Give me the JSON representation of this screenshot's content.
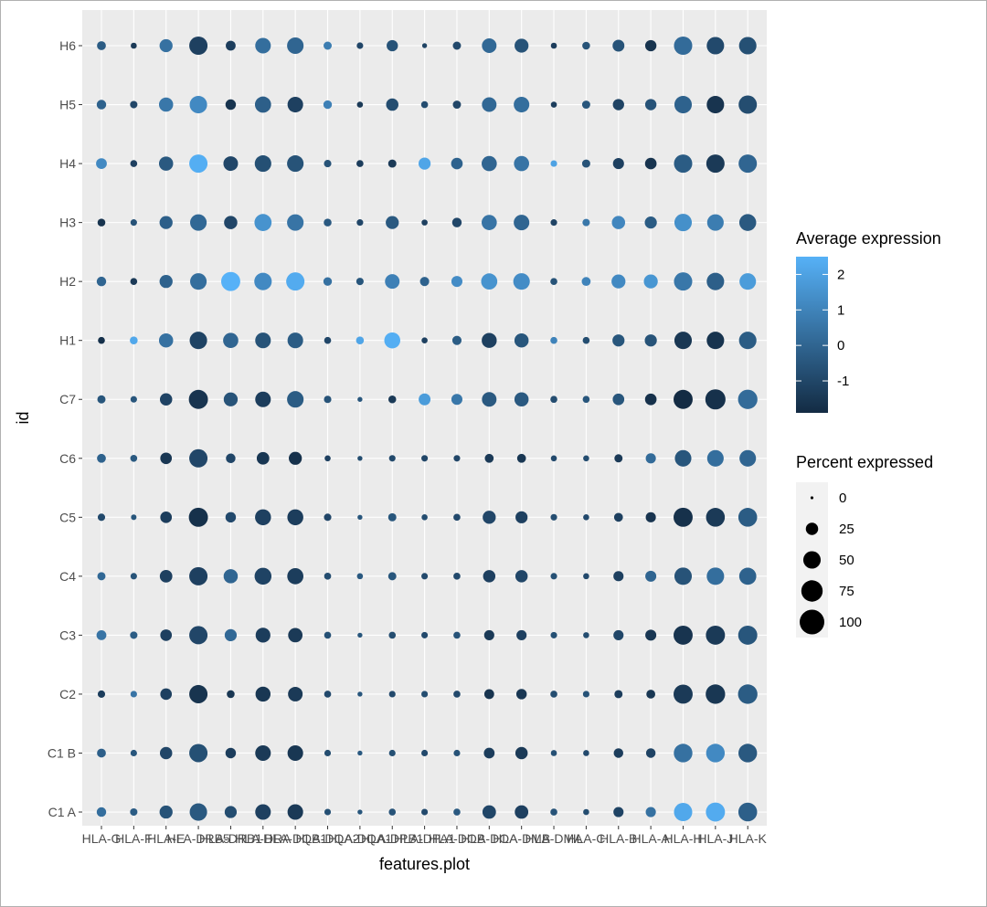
{
  "chart_data": {
    "type": "dotplot",
    "xlabel": "features.plot",
    "ylabel": "id",
    "features": [
      "HLA-G",
      "HLA-F",
      "HLA-E",
      "HLA-DRB5",
      "HLA-DRB1",
      "HLA-DRA",
      "HLA-DQB1",
      "HLA-DQA2",
      "HLA-DQA1",
      "HLA-DPB1",
      "HLA-DPA1",
      "HLA-DOB",
      "HLA-DOA",
      "HLA-DMB",
      "HLA-DMA",
      "HLA-C",
      "HLA-B",
      "HLA-A",
      "HLA-H",
      "HLA-J",
      "HLA-K"
    ],
    "x_tick_labels": [
      "HLA-G",
      "HLA-F",
      "HLA-E",
      "HLA-DRB5",
      "HLA-DRB1",
      "HLA-DRA",
      "HLA-DQB1",
      "HLA-DQA2",
      "HLA-DQA1",
      "HLA-DPB1",
      "HLA-DPA1",
      "HLA-DOB",
      "HLA-DOA",
      "HLA-DMB",
      "HLA-DMA",
      "HLA-C",
      "HLA-B",
      "HLA-A",
      "HLA-H",
      "HLA-J",
      "HLA-K"
    ],
    "ids": [
      "C1 A",
      "C1 B",
      "C2",
      "C3",
      "C4",
      "C5",
      "C6",
      "C7",
      "H1",
      "H2",
      "H3",
      "H4",
      "H5",
      "H6"
    ],
    "avg_expression": [
      [
        0.3,
        -0.3,
        -0.6,
        -0.4,
        -0.8,
        -1.2,
        -1.4,
        -0.7,
        -0.5,
        -0.6,
        -0.9,
        -0.4,
        -1.0,
        -1.2,
        -0.6,
        -0.8,
        -1.1,
        0.4,
        2.2,
        2.3,
        -0.2
      ],
      [
        -0.2,
        -0.5,
        -1.0,
        -0.7,
        -1.3,
        -1.4,
        -1.5,
        -0.8,
        -0.4,
        -0.7,
        -0.9,
        -0.6,
        -1.3,
        -1.4,
        -0.7,
        -0.9,
        -1.3,
        -1.1,
        0.4,
        1.2,
        -0.4
      ],
      [
        -1.3,
        0.5,
        -1.2,
        -1.6,
        -1.5,
        -1.5,
        -1.4,
        -0.9,
        -0.5,
        -0.9,
        -0.8,
        -0.9,
        -1.6,
        -1.5,
        -0.8,
        -0.6,
        -1.3,
        -1.5,
        -1.4,
        -1.5,
        -0.3
      ],
      [
        0.5,
        -0.3,
        -1.2,
        -1.0,
        0.1,
        -1.3,
        -1.4,
        -0.7,
        -0.5,
        -0.8,
        -0.9,
        -0.6,
        -1.4,
        -1.2,
        -0.7,
        -0.8,
        -1.0,
        -1.5,
        -1.6,
        -1.4,
        -0.5
      ],
      [
        0.1,
        -0.6,
        -1.2,
        -1.2,
        0.0,
        -1.1,
        -1.3,
        -0.8,
        -0.4,
        -0.5,
        -0.9,
        -0.9,
        -1.2,
        -1.0,
        -0.7,
        -0.9,
        -1.2,
        0.0,
        -0.6,
        0.3,
        -0.1
      ],
      [
        -0.9,
        -0.5,
        -1.3,
        -1.7,
        -0.9,
        -1.2,
        -1.3,
        -1.0,
        -0.5,
        -0.5,
        -0.8,
        -0.9,
        -1.0,
        -1.2,
        -0.8,
        -0.9,
        -1.2,
        -1.6,
        -1.7,
        -1.4,
        -0.3
      ],
      [
        -0.1,
        -0.4,
        -1.5,
        -1.0,
        -1.0,
        -1.5,
        -1.7,
        -1.2,
        -0.8,
        -0.9,
        -1.0,
        -1.0,
        -1.4,
        -1.5,
        -0.9,
        -0.8,
        -1.4,
        0.2,
        -0.5,
        0.3,
        0.0
      ],
      [
        -0.5,
        -0.5,
        -1.1,
        -1.6,
        -0.6,
        -1.3,
        -0.3,
        -0.6,
        -0.5,
        -1.4,
        1.8,
        0.6,
        -0.4,
        -0.4,
        -0.8,
        -0.5,
        -0.5,
        -1.7,
        -1.9,
        -1.7,
        0.2
      ],
      [
        -1.7,
        2.2,
        0.4,
        -1.1,
        0.0,
        -0.6,
        -0.3,
        -1.0,
        2.1,
        2.4,
        -1.2,
        -0.3,
        -1.2,
        -0.5,
        1.0,
        -0.8,
        -0.5,
        -0.6,
        -1.5,
        -1.6,
        -0.3
      ],
      [
        0.0,
        -1.4,
        -0.1,
        0.3,
        2.5,
        1.2,
        2.3,
        0.4,
        -0.5,
        0.9,
        -0.1,
        1.3,
        1.5,
        1.3,
        -0.6,
        1.0,
        1.2,
        1.6,
        0.6,
        -0.2,
        1.8
      ],
      [
        -1.6,
        -0.6,
        -0.2,
        0.1,
        -1.0,
        1.5,
        0.5,
        -0.4,
        -1.0,
        -0.4,
        -1.2,
        -1.0,
        0.5,
        0.0,
        -1.1,
        0.6,
        1.1,
        -0.3,
        1.4,
        0.8,
        -0.4
      ],
      [
        1.2,
        -1.2,
        -0.4,
        2.4,
        -1.0,
        -0.7,
        -0.6,
        -0.6,
        -1.3,
        -1.4,
        2.1,
        -0.1,
        0.0,
        0.5,
        2.0,
        -0.6,
        -1.2,
        -1.6,
        -0.3,
        -1.4,
        0.0
      ],
      [
        -0.1,
        -1.0,
        0.6,
        1.2,
        -1.6,
        -0.2,
        -1.2,
        0.9,
        -1.4,
        -0.8,
        -0.8,
        -1.0,
        0.1,
        0.3,
        -1.3,
        -0.5,
        -1.1,
        -0.6,
        -0.1,
        -1.6,
        -0.8
      ],
      [
        -0.3,
        -1.4,
        0.4,
        -1.2,
        -1.3,
        0.3,
        0.0,
        0.8,
        -1.0,
        -0.6,
        -1.1,
        -0.9,
        0.1,
        -0.6,
        -1.3,
        -0.6,
        -0.6,
        -1.6,
        0.2,
        -0.9,
        -0.7
      ]
    ],
    "pct_expressed": [
      [
        15,
        9,
        28,
        50,
        24,
        40,
        40,
        7,
        4,
        8,
        7,
        8,
        30,
        30,
        8,
        6,
        17,
        17,
        55,
        60,
        58
      ],
      [
        13,
        7,
        25,
        55,
        18,
        40,
        40,
        7,
        4,
        7,
        7,
        7,
        19,
        25,
        6,
        6,
        15,
        15,
        57,
        57,
        57
      ],
      [
        9,
        7,
        22,
        55,
        10,
        37,
        35,
        8,
        4,
        7,
        7,
        8,
        16,
        18,
        8,
        7,
        11,
        13,
        60,
        62,
        62
      ],
      [
        16,
        9,
        22,
        55,
        24,
        36,
        34,
        8,
        4,
        8,
        7,
        8,
        17,
        17,
        7,
        6,
        17,
        20,
        60,
        60,
        60
      ],
      [
        11,
        7,
        26,
        55,
        33,
        47,
        43,
        8,
        6,
        11,
        7,
        8,
        25,
        25,
        7,
        6,
        17,
        20,
        50,
        50,
        48
      ],
      [
        9,
        5,
        22,
        60,
        18,
        42,
        42,
        9,
        4,
        11,
        6,
        8,
        28,
        24,
        7,
        6,
        13,
        17,
        60,
        58,
        58
      ],
      [
        13,
        8,
        22,
        55,
        15,
        26,
        28,
        6,
        4,
        7,
        7,
        7,
        13,
        13,
        6,
        6,
        11,
        17,
        45,
        45,
        45
      ],
      [
        11,
        7,
        25,
        60,
        32,
        40,
        45,
        9,
        4,
        10,
        23,
        20,
        35,
        33,
        8,
        8,
        22,
        22,
        60,
        67,
        62
      ],
      [
        8,
        10,
        33,
        50,
        38,
        40,
        40,
        8,
        10,
        42,
        6,
        14,
        37,
        33,
        8,
        8,
        24,
        24,
        50,
        50,
        50
      ],
      [
        15,
        8,
        28,
        45,
        60,
        50,
        55,
        12,
        9,
        35,
        14,
        20,
        43,
        45,
        8,
        13,
        32,
        32,
        55,
        50,
        45
      ],
      [
        10,
        7,
        28,
        45,
        29,
        48,
        45,
        10,
        7,
        28,
        6,
        15,
        38,
        40,
        7,
        9,
        29,
        24,
        50,
        45,
        47
      ],
      [
        19,
        8,
        33,
        55,
        35,
        45,
        45,
        9,
        8,
        11,
        24,
        22,
        38,
        38,
        7,
        11,
        20,
        22,
        55,
        55,
        55
      ],
      [
        15,
        9,
        33,
        50,
        18,
        43,
        40,
        12,
        6,
        25,
        8,
        11,
        35,
        40,
        6,
        11,
        21,
        21,
        50,
        50,
        55
      ],
      [
        13,
        6,
        28,
        55,
        16,
        40,
        45,
        11,
        7,
        21,
        4,
        11,
        35,
        32,
        6,
        10,
        23,
        21,
        55,
        50,
        50
      ]
    ],
    "legend_color": {
      "title": "Average expression",
      "low_color": "#132B43",
      "high_color": "#56B1F7",
      "min": -1.9,
      "max": 2.5,
      "ticks": [
        2,
        1,
        0,
        -1
      ],
      "tick_labels": [
        "2",
        "1",
        "0",
        "-1"
      ]
    },
    "legend_size": {
      "title": "Percent expressed",
      "values": [
        0,
        25,
        50,
        75,
        100
      ],
      "labels": [
        "0",
        "25",
        "50",
        "75",
        "100"
      ],
      "color": "#000000"
    },
    "panel_background": "#EBEBEB",
    "gridline_color": "#FFFFFF"
  }
}
